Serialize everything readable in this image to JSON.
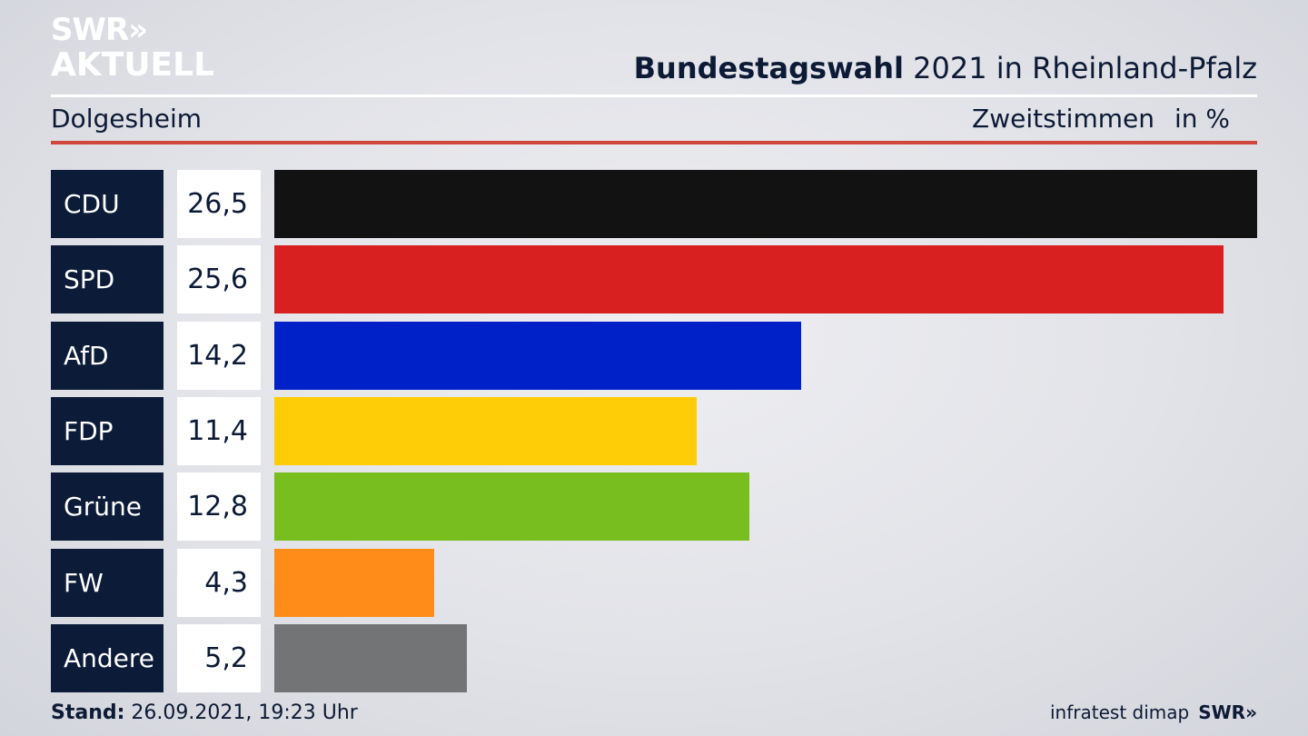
{
  "branding": {
    "logo_main": "SWR»",
    "logo_sub": "AKTUELL",
    "footer_logo": "SWR»"
  },
  "header": {
    "title_bold": "Bundestagswahl",
    "title_rest": " 2021 in Rheinland-Pfalz",
    "location": "Dolgesheim",
    "metric": "Zweitstimmen",
    "unit": "in %"
  },
  "footer": {
    "stand_label": "Stand:",
    "stand_value": " 26.09.2021, 19:23 Uhr",
    "source": "infratest dimap"
  },
  "colors": {
    "CDU": "#121212",
    "SPD": "#d82020",
    "AfD": "#0021c8",
    "FDP": "#ffcc08",
    "Grüne": "#78be1e",
    "FW": "#ff8c19",
    "Andere": "#737476",
    "accent_red": "#d0463c",
    "navy": "#0c1b38"
  },
  "chart_data": {
    "type": "bar",
    "orientation": "horizontal",
    "categories": [
      "CDU",
      "SPD",
      "AfD",
      "FDP",
      "Grüne",
      "FW",
      "Andere"
    ],
    "values": [
      26.5,
      25.6,
      14.2,
      11.4,
      12.8,
      4.3,
      5.2
    ],
    "value_labels": [
      "26,5",
      "25,6",
      "14,2",
      "11,4",
      "12,8",
      "4,3",
      "5,2"
    ],
    "title": "Bundestagswahl 2021 in Rheinland-Pfalz",
    "subtitle": "Dolgesheim",
    "ylabel": "Zweitstimmen in %",
    "xlim": [
      0,
      26.5
    ],
    "grid": false,
    "legend": "none"
  }
}
